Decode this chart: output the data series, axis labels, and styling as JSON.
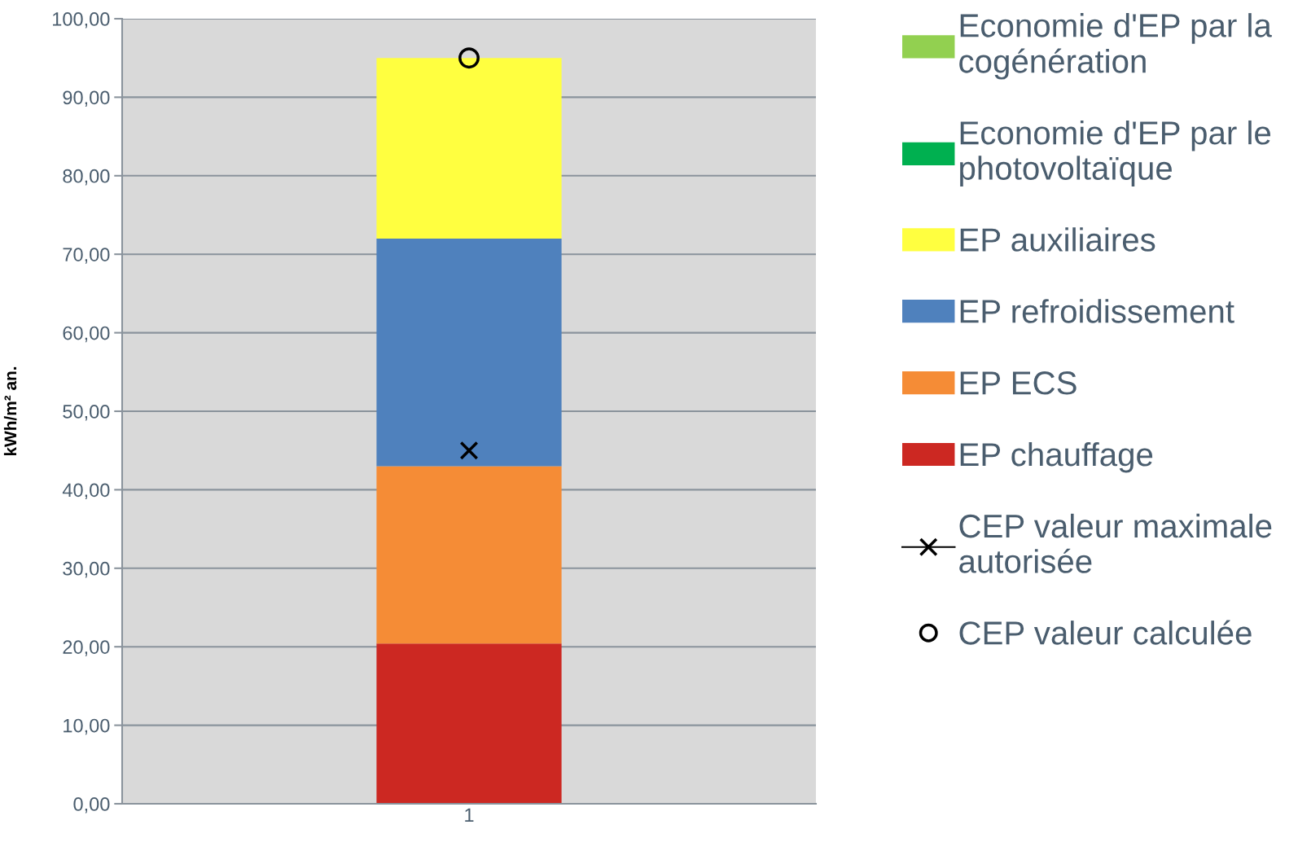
{
  "chart_data": {
    "type": "bar",
    "stacked": true,
    "categories": [
      "1"
    ],
    "ylabel": "kWh/m² an.",
    "series": [
      {
        "name": "EP chauffage",
        "color": "#cc2822",
        "values": [
          20.4
        ]
      },
      {
        "name": "EP ECS",
        "color": "#f58c36",
        "values": [
          22.6
        ]
      },
      {
        "name": "EP refroidissement",
        "color": "#4f81bd",
        "values": [
          29.0
        ]
      },
      {
        "name": "EP auxiliaires",
        "color": "#ffff40",
        "values": [
          23.0
        ]
      },
      {
        "name": "Economie d'EP par le photovoltaïque",
        "color": "#00b050",
        "values": [
          0
        ]
      },
      {
        "name": "Economie d'EP par la cogénération",
        "color": "#92d050",
        "values": [
          0
        ]
      },
      {
        "name": "CEP valeur maximale autorisée",
        "type": "line",
        "marker": "cross",
        "color": "#000000",
        "x": [
          "1"
        ],
        "values": [
          45
        ]
      },
      {
        "name": "CEP valeur calculée",
        "type": "scatter",
        "marker": "circle",
        "color": "#000000",
        "x": [
          "1"
        ],
        "values": [
          95
        ]
      }
    ],
    "ylim": [
      0,
      100
    ],
    "yticks": [
      {
        "value": 0,
        "label": "0,00"
      },
      {
        "value": 10,
        "label": "10,00"
      },
      {
        "value": 20,
        "label": "20,00"
      },
      {
        "value": 30,
        "label": "30,00"
      },
      {
        "value": 40,
        "label": "40,00"
      },
      {
        "value": 50,
        "label": "50,00"
      },
      {
        "value": 60,
        "label": "60,00"
      },
      {
        "value": 70,
        "label": "70,00"
      },
      {
        "value": 80,
        "label": "80,00"
      },
      {
        "value": 90,
        "label": "90,00"
      },
      {
        "value": 100,
        "label": "100,00"
      }
    ],
    "grid": "y",
    "legend": "right"
  }
}
